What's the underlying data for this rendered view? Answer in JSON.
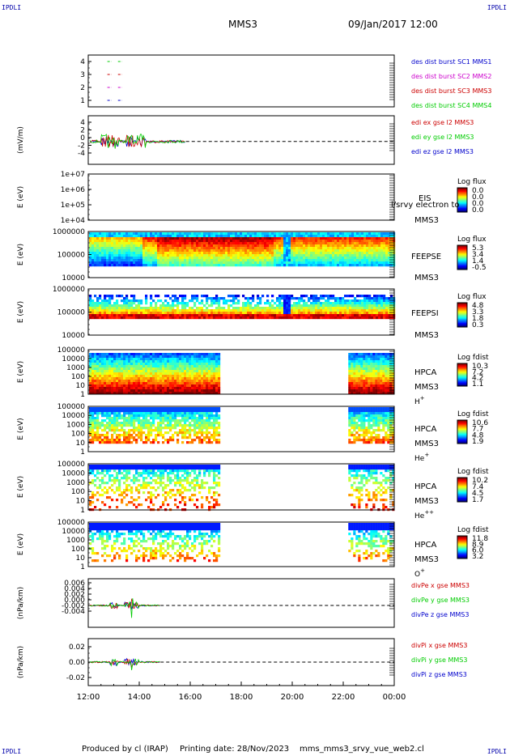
{
  "header": {
    "corner_tag": "IPDLI",
    "mission": "MMS3",
    "datetime": "09/Jan/2017 12:00"
  },
  "footer": {
    "produced_by": "Produced by cl (IRAP)",
    "printing_date": "Printing date: 28/Nov/2023",
    "script": "mms_mms3_srvy_vue_web2.cl"
  },
  "colors": {
    "red": "#cc0000",
    "green": "#00cc00",
    "blue": "#0000cc",
    "magenta": "#cc00cc",
    "dashed": "#000000"
  },
  "chart_data": {
    "type": "heatmap",
    "x_ticks": [
      "12:00",
      "14:00",
      "16:00",
      "18:00",
      "20:00",
      "22:00",
      "00:00"
    ],
    "panels": [
      {
        "id": "burst",
        "type": "line",
        "yticks": [
          "1",
          "2",
          "3",
          "4"
        ],
        "legend": [
          {
            "text": "des dist burst SC1 MMS1",
            "color": "blue"
          },
          {
            "text": "des dist burst SC2 MMS2",
            "color": "magenta"
          },
          {
            "text": "des dist burst SC3 MMS3",
            "color": "red"
          },
          {
            "text": "des dist burst SC4 MMS4",
            "color": "green"
          }
        ],
        "series": [
          {
            "level": 4,
            "color": "green",
            "intervals": [
              [
                "12:45",
                "12:55"
              ],
              [
                "13:10",
                "13:20"
              ]
            ]
          },
          {
            "level": 3,
            "color": "red",
            "intervals": [
              [
                "12:45",
                "12:55"
              ],
              [
                "13:10",
                "13:20"
              ]
            ]
          },
          {
            "level": 2,
            "color": "magenta",
            "intervals": [
              [
                "12:45",
                "12:55"
              ],
              [
                "13:10",
                "13:20"
              ]
            ]
          },
          {
            "level": 1,
            "color": "blue",
            "intervals": [
              [
                "12:45",
                "12:55"
              ],
              [
                "13:10",
                "13:20"
              ]
            ]
          }
        ]
      },
      {
        "id": "edi",
        "type": "line",
        "ylabel": "(mV/m)",
        "yticks": [
          "-4",
          "-2",
          "0",
          "2",
          "4"
        ],
        "legend": [
          {
            "text": "edi ex gse l2 MMS3",
            "color": "red"
          },
          {
            "text": "edi ey gse l2 MMS3",
            "color": "green"
          },
          {
            "text": "edi ez gse l2 MMS3",
            "color": "blue"
          }
        ],
        "data_range": [
          "12:00",
          "15:50"
        ]
      },
      {
        "id": "eis",
        "type": "heatmap",
        "ylabel": "E (eV)",
        "yticks": [
          "1e+04",
          "1e+05",
          "1e+06",
          "1e+07"
        ],
        "side_labels": [
          "EIS",
          "MMS3"
        ],
        "overlap_label": "l/srvy electron to",
        "cbar_title": "Log flux",
        "cbar_values": [
          "0.0",
          "0.0",
          "0.0",
          "0.0"
        ]
      },
      {
        "id": "feepse",
        "type": "heatmap",
        "ylabel": "E (eV)",
        "yticks": [
          "10000",
          "100000",
          "1000000"
        ],
        "side_labels": [
          "FEEPSE",
          "MMS3"
        ],
        "cbar_title": "Log flux",
        "cbar_values": [
          "5.3",
          "3.4",
          "1.4",
          "-0.5"
        ]
      },
      {
        "id": "feepsi",
        "type": "heatmap",
        "ylabel": "E (eV)",
        "yticks": [
          "10000",
          "100000",
          "1000000"
        ],
        "side_labels": [
          "FEEPSI",
          "MMS3"
        ],
        "cbar_title": "Log flux",
        "cbar_values": [
          "4.8",
          "3.3",
          "1.8",
          "0.3"
        ]
      },
      {
        "id": "hpca_h",
        "type": "heatmap",
        "ylabel": "E (eV)",
        "yticks": [
          "1",
          "10",
          "100",
          "1000",
          "10000",
          "100000"
        ],
        "side_labels": [
          "HPCA",
          "MMS3",
          "H+"
        ],
        "cbar_title": "Log fdist",
        "cbar_values": [
          "10.3",
          "7.2",
          "4.2",
          "1.1"
        ],
        "data_intervals": [
          [
            "12:00",
            "17:10"
          ],
          [
            "22:10",
            "00:00"
          ]
        ]
      },
      {
        "id": "hpca_he",
        "type": "heatmap",
        "ylabel": "E (eV)",
        "yticks": [
          "1",
          "10",
          "100",
          "1000",
          "10000",
          "100000"
        ],
        "side_labels": [
          "HPCA",
          "MMS3",
          "He+"
        ],
        "cbar_title": "Log fdist",
        "cbar_values": [
          "10.6",
          "7.7",
          "4.8",
          "1.9"
        ],
        "data_intervals": [
          [
            "12:00",
            "17:10"
          ],
          [
            "22:10",
            "00:00"
          ]
        ]
      },
      {
        "id": "hpca_hepp",
        "type": "heatmap",
        "ylabel": "E (eV)",
        "yticks": [
          "1",
          "10",
          "100",
          "1000",
          "10000",
          "100000"
        ],
        "side_labels": [
          "HPCA",
          "MMS3",
          "He++"
        ],
        "cbar_title": "Log fdist",
        "cbar_values": [
          "10.2",
          "7.4",
          "4.5",
          "1.7"
        ],
        "data_intervals": [
          [
            "12:00",
            "17:10"
          ],
          [
            "22:10",
            "00:00"
          ]
        ]
      },
      {
        "id": "hpca_o",
        "type": "heatmap",
        "ylabel": "E (eV)",
        "yticks": [
          "1",
          "10",
          "100",
          "1000",
          "10000",
          "100000"
        ],
        "side_labels": [
          "HPCA",
          "MMS3",
          "O+"
        ],
        "cbar_title": "Log fdist",
        "cbar_values": [
          "11.8",
          "8.9",
          "6.0",
          "3.2"
        ],
        "data_intervals": [
          [
            "12:00",
            "17:10"
          ],
          [
            "22:10",
            "00:00"
          ]
        ]
      },
      {
        "id": "divpe",
        "type": "line",
        "ylabel": "(nPa/km)",
        "yticks": [
          "-0.004",
          "-0.002",
          "0.000",
          "0.002",
          "0.004",
          "0.006"
        ],
        "legend": [
          {
            "text": "divPe x gse MMS3",
            "color": "red"
          },
          {
            "text": "divPe y gse MMS3",
            "color": "green"
          },
          {
            "text": "divPe z gse MMS3",
            "color": "blue"
          }
        ],
        "data_range": [
          "12:00",
          "14:50"
        ]
      },
      {
        "id": "divpi",
        "type": "line",
        "ylabel": "(nPa/km)",
        "yticks": [
          "-0.02",
          "0.00",
          "0.02"
        ],
        "legend": [
          {
            "text": "divPi x gse MMS3",
            "color": "red"
          },
          {
            "text": "divPi y gse MMS3",
            "color": "green"
          },
          {
            "text": "divPi z gse MMS3",
            "color": "blue"
          }
        ],
        "data_range": [
          "12:00",
          "14:50"
        ]
      }
    ]
  }
}
